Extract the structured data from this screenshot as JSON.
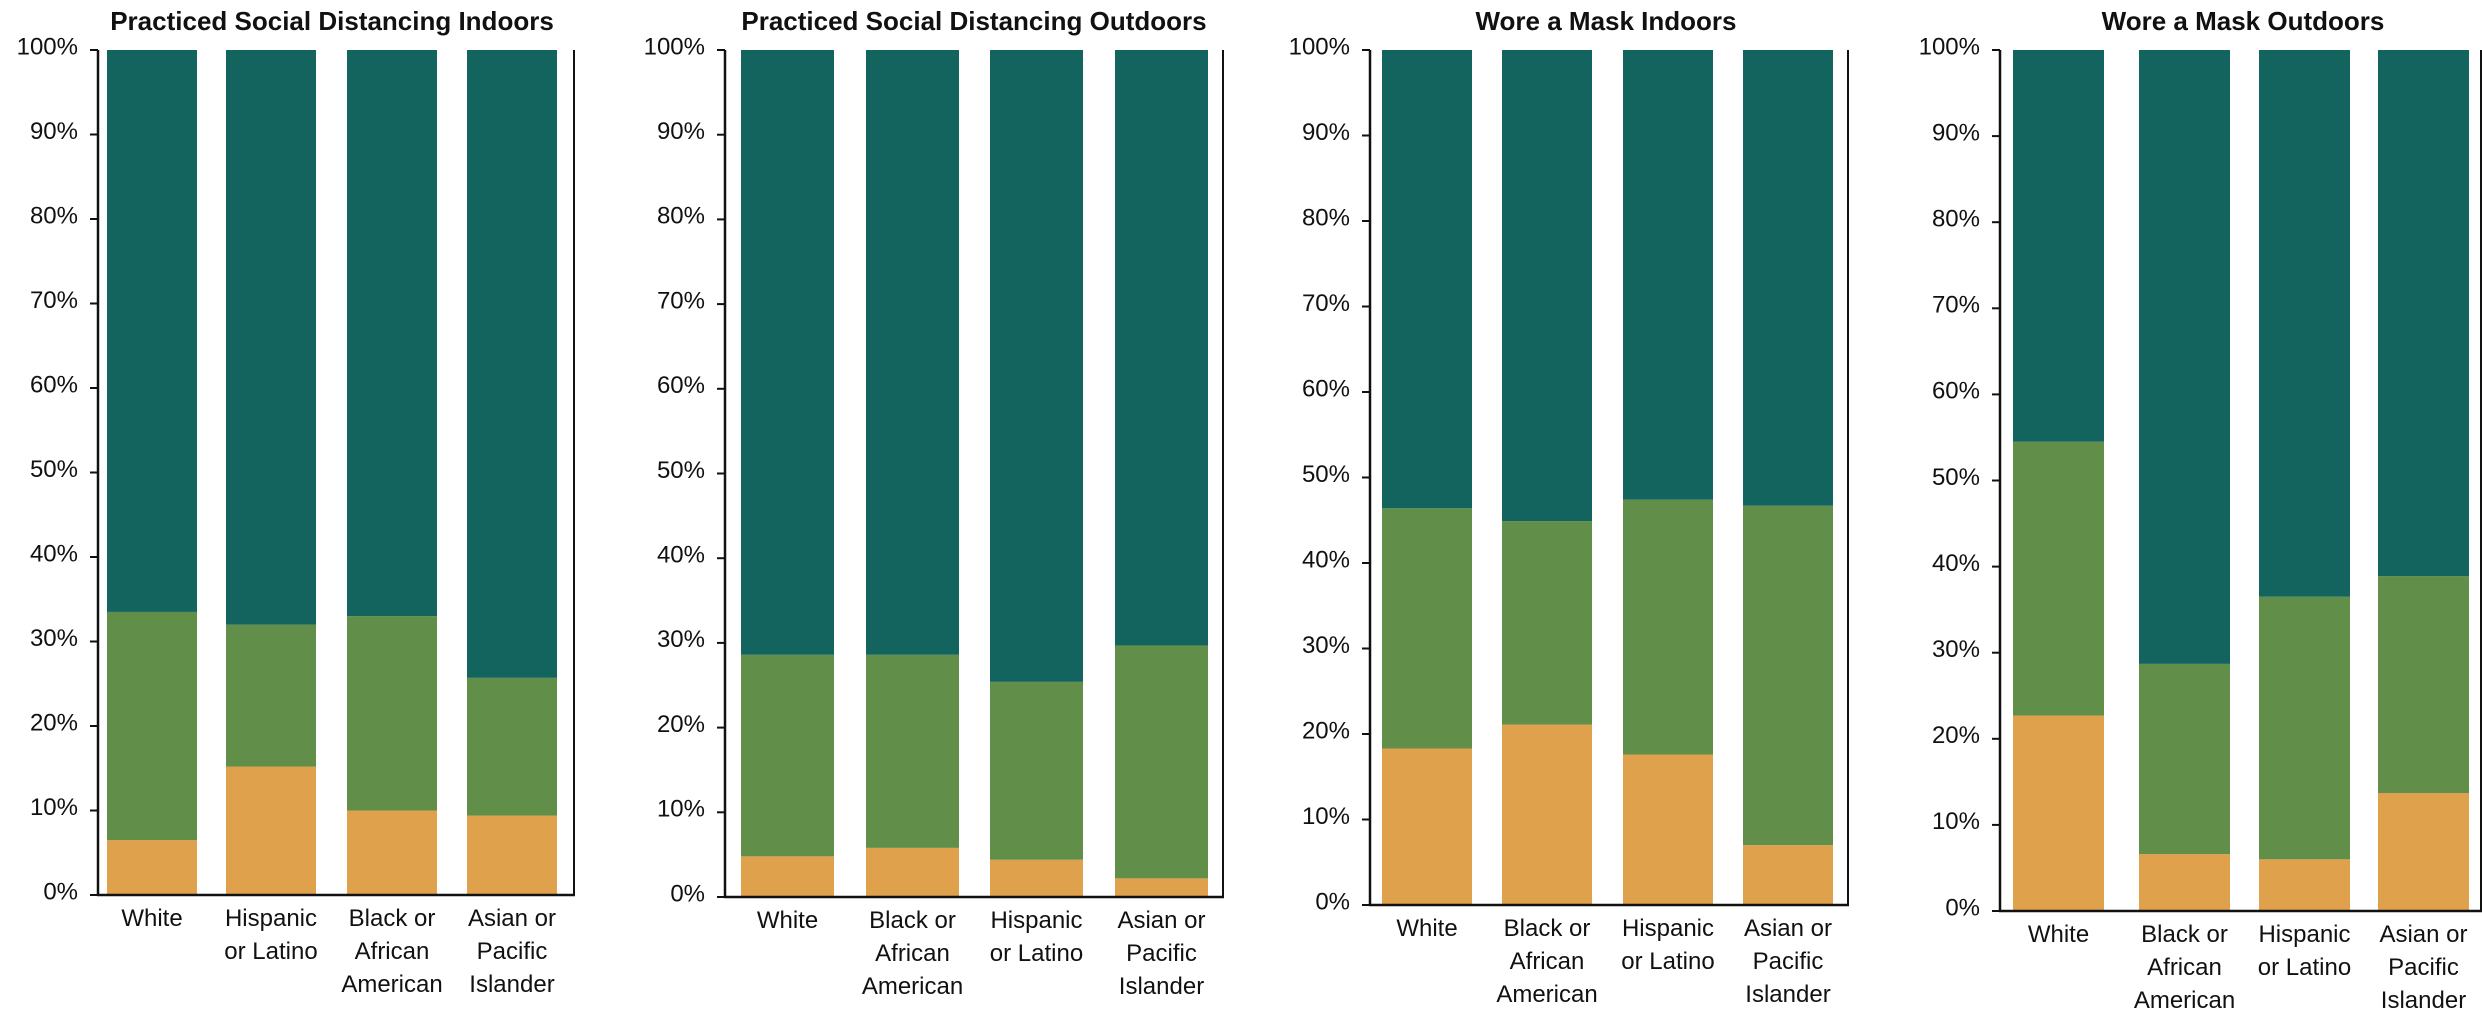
{
  "colors": {
    "bottom": "#DFA14B",
    "middle": "#618E49",
    "top": "#13645E"
  },
  "chart_data": [
    {
      "type": "bar",
      "stacked": true,
      "title": "Practiced Social Distancing Indoors",
      "categories": [
        "White",
        "Hispanic or Latino",
        "Black or African American",
        "Asian or Pacific Islander"
      ],
      "category_lines": [
        [
          "White"
        ],
        [
          "Hispanic",
          "or Latino"
        ],
        [
          "Black or",
          "African",
          "American"
        ],
        [
          "Asian or",
          "Pacific",
          "Islander"
        ]
      ],
      "series": [
        {
          "color_key": "bottom",
          "values": [
            6.5,
            15.2,
            10.0,
            9.4
          ]
        },
        {
          "color_key": "middle",
          "values": [
            27.0,
            16.8,
            23.0,
            16.3
          ]
        },
        {
          "color_key": "top",
          "values": [
            66.5,
            68.0,
            67.0,
            74.3
          ]
        }
      ],
      "ylim": [
        0,
        100
      ],
      "yticks": [
        0,
        10,
        20,
        30,
        40,
        50,
        60,
        70,
        80,
        90,
        100
      ],
      "ytick_labels": [
        "0%",
        "10%",
        "20%",
        "30%",
        "40%",
        "50%",
        "60%",
        "70%",
        "80%",
        "90%",
        "100%"
      ],
      "grid": false
    },
    {
      "type": "bar",
      "stacked": true,
      "title": "Practiced Social Distancing Outdoors",
      "categories": [
        "White",
        "Black or African American",
        "Hispanic or Latino",
        "Asian or Pacific Islander"
      ],
      "category_lines": [
        [
          "White"
        ],
        [
          "Black or",
          "African",
          "American"
        ],
        [
          "Hispanic",
          "or Latino"
        ],
        [
          "Asian or",
          "Pacific",
          "Islander"
        ]
      ],
      "series": [
        {
          "color_key": "bottom",
          "values": [
            4.8,
            5.8,
            4.4,
            2.2
          ]
        },
        {
          "color_key": "middle",
          "values": [
            23.8,
            22.8,
            21.0,
            27.5
          ]
        },
        {
          "color_key": "top",
          "values": [
            71.4,
            71.4,
            74.6,
            70.3
          ]
        }
      ],
      "ylim": [
        0,
        100
      ],
      "yticks": [
        0,
        10,
        20,
        30,
        40,
        50,
        60,
        70,
        80,
        90,
        100
      ],
      "ytick_labels": [
        "0%",
        "10%",
        "20%",
        "30%",
        "40%",
        "50%",
        "60%",
        "70%",
        "80%",
        "90%",
        "100%"
      ],
      "grid": false
    },
    {
      "type": "bar",
      "stacked": true,
      "title": "Wore a Mask Indoors",
      "categories": [
        "White",
        "Black or African American",
        "Hispanic or Latino",
        "Asian or Pacific Islander"
      ],
      "category_lines": [
        [
          "White"
        ],
        [
          "Black or",
          "African",
          "American"
        ],
        [
          "Hispanic",
          "or Latino"
        ],
        [
          "Asian or",
          "Pacific",
          "Islander"
        ]
      ],
      "series": [
        {
          "color_key": "bottom",
          "values": [
            18.3,
            21.1,
            17.6,
            7.0
          ]
        },
        {
          "color_key": "middle",
          "values": [
            28.1,
            23.8,
            29.8,
            39.7
          ]
        },
        {
          "color_key": "top",
          "values": [
            53.6,
            55.1,
            52.6,
            53.3
          ]
        }
      ],
      "ylim": [
        0,
        100
      ],
      "yticks": [
        0,
        10,
        20,
        30,
        40,
        50,
        60,
        70,
        80,
        90,
        100
      ],
      "ytick_labels": [
        "0%",
        "10%",
        "20%",
        "30%",
        "40%",
        "50%",
        "60%",
        "70%",
        "80%",
        "90%",
        "100%"
      ],
      "grid": false
    },
    {
      "type": "bar",
      "stacked": true,
      "title": "Wore a Mask Outdoors",
      "categories": [
        "White",
        "Black or African American",
        "Hispanic or Latino",
        "Asian or Pacific Islander"
      ],
      "category_lines": [
        [
          "White"
        ],
        [
          "Black or",
          "African",
          "American"
        ],
        [
          "Hispanic",
          "or Latino"
        ],
        [
          "Asian or",
          "Pacific",
          "Islander"
        ]
      ],
      "series": [
        {
          "color_key": "bottom",
          "values": [
            22.7,
            6.6,
            6.0,
            13.7
          ]
        },
        {
          "color_key": "middle",
          "values": [
            31.8,
            22.1,
            30.5,
            25.2
          ]
        },
        {
          "color_key": "top",
          "values": [
            45.5,
            71.3,
            63.5,
            61.1
          ]
        }
      ],
      "ylim": [
        0,
        100
      ],
      "yticks": [
        0,
        10,
        20,
        30,
        40,
        50,
        60,
        70,
        80,
        90,
        100
      ],
      "ytick_labels": [
        "0%",
        "10%",
        "20%",
        "30%",
        "40%",
        "50%",
        "60%",
        "70%",
        "80%",
        "90%",
        "100%"
      ],
      "grid": false
    }
  ]
}
